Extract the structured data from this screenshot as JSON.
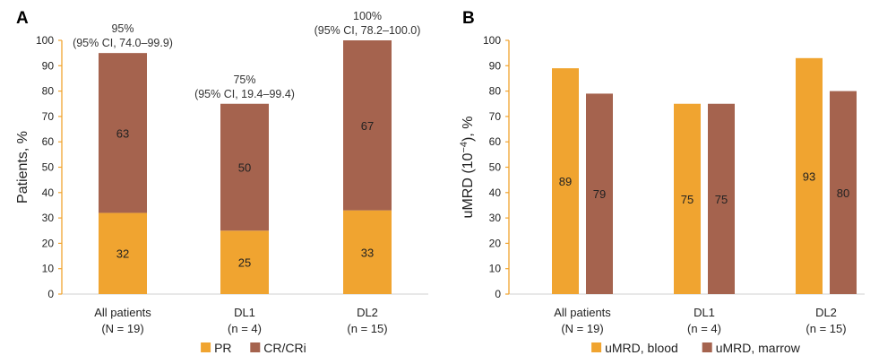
{
  "colors": {
    "orange": "#F0A430",
    "brown": "#A5634E",
    "axis": "#F0A430",
    "baseline": "#D9D9D9"
  },
  "chart_data": [
    {
      "panel": "A",
      "type": "bar",
      "stacked": true,
      "title": "",
      "xlabel": "",
      "ylabel": "Patients, %",
      "ylim": [
        0,
        100
      ],
      "yticks": [
        "0",
        "10",
        "20",
        "30",
        "40",
        "50",
        "60",
        "70",
        "80",
        "90",
        "100"
      ],
      "categories": [
        {
          "name": "All patients",
          "n": "(N = 19)"
        },
        {
          "name": "DL1",
          "n": "(n = 4)"
        },
        {
          "name": "DL2",
          "n": "(n = 15)"
        }
      ],
      "series": [
        {
          "name": "PR",
          "color_key": "orange",
          "values": [
            32,
            25,
            33
          ]
        },
        {
          "name": "CR/CRi",
          "color_key": "brown",
          "values": [
            63,
            50,
            67
          ]
        }
      ],
      "annotations": [
        {
          "total": "95%",
          "ci": "(95% CI, 74.0–99.9)"
        },
        {
          "total": "75%",
          "ci": "(95% CI, 19.4–99.4)"
        },
        {
          "total": "100%",
          "ci": "(95% CI, 78.2–100.0)"
        }
      ],
      "legend": "bottom",
      "grid": false
    },
    {
      "panel": "B",
      "type": "bar",
      "stacked": false,
      "title": "",
      "xlabel": "",
      "ylabel_main": "uMRD (10",
      "ylabel_sup": "−4",
      "ylabel_tail": "), %",
      "ylim": [
        0,
        100
      ],
      "yticks": [
        "0",
        "10",
        "20",
        "30",
        "40",
        "50",
        "60",
        "70",
        "80",
        "90",
        "100"
      ],
      "categories": [
        {
          "name": "All patients",
          "n": "(N = 19)"
        },
        {
          "name": "DL1",
          "n": "(n = 4)"
        },
        {
          "name": "DL2",
          "n": "(n = 15)"
        }
      ],
      "series": [
        {
          "name": "uMRD, blood",
          "color_key": "orange",
          "values": [
            89,
            75,
            93
          ]
        },
        {
          "name": "uMRD, marrow",
          "color_key": "brown",
          "values": [
            79,
            75,
            80
          ]
        }
      ],
      "legend": "bottom",
      "grid": false
    }
  ]
}
